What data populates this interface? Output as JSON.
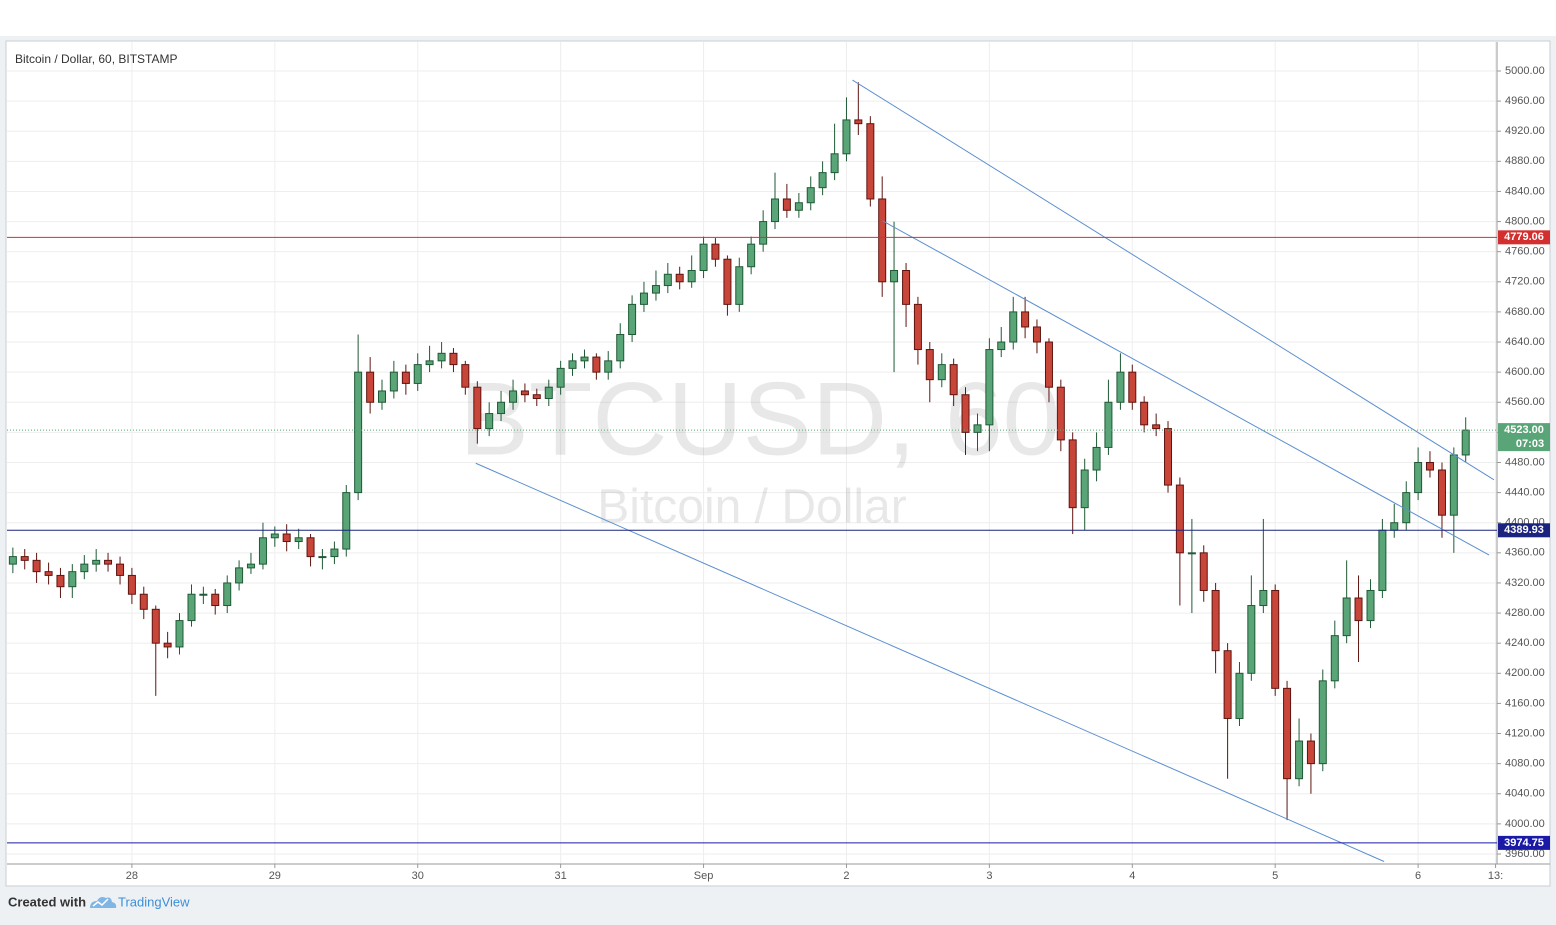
{
  "chart_data": {
    "type": "candlestick",
    "title": "Bitcoin / Dollar, 60, BITSTAMP",
    "watermark": {
      "symbol": "BTCUSD, 60",
      "name": "Bitcoin / Dollar"
    },
    "x": [
      -0.833,
      -0.75,
      -0.667,
      -0.583,
      -0.5,
      -0.417,
      -0.333,
      -0.25,
      -0.167,
      -0.083,
      0,
      0.083,
      0.167,
      0.25,
      0.333,
      0.417,
      0.5,
      0.583,
      0.667,
      0.75,
      0.833,
      0.917,
      1,
      1.083,
      1.167,
      1.25,
      1.333,
      1.417,
      1.5,
      1.583,
      1.667,
      1.75,
      1.833,
      1.917,
      2,
      2.083,
      2.167,
      2.25,
      2.333,
      2.417,
      2.5,
      2.583,
      2.667,
      2.75,
      2.833,
      2.917,
      3,
      3.083,
      3.167,
      3.25,
      3.333,
      3.417,
      3.5,
      3.583,
      3.667,
      3.75,
      3.833,
      3.917,
      4,
      4.083,
      4.167,
      4.25,
      4.333,
      4.417,
      4.5,
      4.583,
      4.667,
      4.75,
      4.833,
      4.917,
      5,
      5.083,
      5.167,
      5.25,
      5.333,
      5.417,
      5.5,
      5.583,
      5.667,
      5.75,
      5.833,
      5.917,
      6,
      6.083,
      6.167,
      6.25,
      6.333,
      6.417,
      6.5,
      6.583,
      6.667,
      6.75,
      6.833,
      6.917,
      7,
      7.083,
      7.167,
      7.25,
      7.333,
      7.417,
      7.5,
      7.583,
      7.667,
      7.75,
      7.833,
      7.917,
      8,
      8.083,
      8.167,
      8.25,
      8.333,
      8.417,
      8.5,
      8.583,
      8.667,
      8.75,
      8.833,
      8.917,
      9,
      9.083,
      9.167,
      9.25,
      9.333
    ],
    "open": [
      4345,
      4355,
      4350,
      4335,
      4330,
      4315,
      4335,
      4345,
      4350,
      4345,
      4330,
      4305,
      4285,
      4240,
      4235,
      4270,
      4305,
      4305,
      4290,
      4320,
      4340,
      4345,
      4380,
      4385,
      4375,
      4380,
      4355,
      4355,
      4365,
      4440,
      4600,
      4560,
      4575,
      4600,
      4585,
      4610,
      4615,
      4625,
      4610,
      4580,
      4525,
      4545,
      4560,
      4575,
      4570,
      4565,
      4580,
      4605,
      4615,
      4620,
      4600,
      4615,
      4650,
      4690,
      4705,
      4715,
      4730,
      4720,
      4735,
      4770,
      4750,
      4690,
      4740,
      4770,
      4800,
      4830,
      4815,
      4825,
      4845,
      4865,
      4890,
      4935,
      4930,
      4830,
      4720,
      4735,
      4690,
      4630,
      4590,
      4610,
      4570,
      4520,
      4530,
      4630,
      4640,
      4680,
      4660,
      4640,
      4580,
      4510,
      4420,
      4470,
      4500,
      4560,
      4600,
      4560,
      4530,
      4525,
      4450,
      4360,
      4360,
      4310,
      4230,
      4140,
      4200,
      4290,
      4310,
      4180,
      4060,
      4110,
      4080,
      4190,
      4250,
      4300,
      4270,
      4310,
      4390,
      4400,
      4440,
      4480,
      4470,
      4410,
      4490
    ],
    "high": [
      4367,
      4365,
      4360,
      4347,
      4340,
      4345,
      4357,
      4365,
      4360,
      4355,
      4340,
      4315,
      4290,
      4255,
      4280,
      4318,
      4315,
      4312,
      4330,
      4350,
      4360,
      4400,
      4395,
      4398,
      4392,
      4385,
      4365,
      4375,
      4450,
      4650,
      4620,
      4590,
      4615,
      4610,
      4625,
      4635,
      4640,
      4632,
      4615,
      4588,
      4560,
      4575,
      4590,
      4585,
      4578,
      4590,
      4615,
      4625,
      4630,
      4625,
      4628,
      4665,
      4702,
      4720,
      4735,
      4745,
      4740,
      4755,
      4780,
      4778,
      4755,
      4752,
      4780,
      4815,
      4865,
      4850,
      4838,
      4860,
      4880,
      4930,
      4965,
      4985,
      4940,
      4860,
      4800,
      4745,
      4700,
      4640,
      4625,
      4618,
      4580,
      4545,
      4645,
      4660,
      4700,
      4700,
      4670,
      4645,
      4590,
      4520,
      4485,
      4520,
      4590,
      4625,
      4610,
      4568,
      4545,
      4535,
      4460,
      4405,
      4370,
      4320,
      4240,
      4215,
      4330,
      4405,
      4318,
      4190,
      4140,
      4120,
      4205,
      4270,
      4350,
      4330,
      4325,
      4405,
      4425,
      4455,
      4500,
      4495,
      4480,
      4500,
      4540
    ],
    "low": [
      4333,
      4338,
      4320,
      4318,
      4300,
      4300,
      4325,
      4335,
      4335,
      4318,
      4292,
      4272,
      4170,
      4220,
      4225,
      4262,
      4292,
      4278,
      4280,
      4310,
      4332,
      4338,
      4368,
      4362,
      4365,
      4342,
      4338,
      4345,
      4355,
      4430,
      4545,
      4550,
      4565,
      4570,
      4575,
      4600,
      4605,
      4600,
      4570,
      4505,
      4515,
      4535,
      4550,
      4560,
      4555,
      4555,
      4570,
      4595,
      4605,
      4590,
      4590,
      4605,
      4640,
      4680,
      4695,
      4705,
      4710,
      4712,
      4725,
      4740,
      4675,
      4680,
      4730,
      4760,
      4790,
      4805,
      4805,
      4815,
      4835,
      4855,
      4880,
      4915,
      4820,
      4700,
      4600,
      4660,
      4610,
      4560,
      4580,
      4555,
      4490,
      4495,
      4495,
      4620,
      4630,
      4645,
      4625,
      4560,
      4495,
      4385,
      4390,
      4455,
      4490,
      4550,
      4550,
      4520,
      4515,
      4440,
      4290,
      4280,
      4295,
      4200,
      4060,
      4130,
      4190,
      4280,
      4170,
      4005,
      4050,
      4040,
      4070,
      4180,
      4240,
      4215,
      4260,
      4300,
      4380,
      4390,
      4430,
      4460,
      4380,
      4360,
      4480
    ],
    "close": [
      4355,
      4350,
      4335,
      4330,
      4315,
      4335,
      4345,
      4350,
      4345,
      4330,
      4305,
      4285,
      4240,
      4235,
      4270,
      4305,
      4305,
      4290,
      4320,
      4340,
      4345,
      4380,
      4385,
      4375,
      4380,
      4355,
      4355,
      4365,
      4440,
      4600,
      4560,
      4575,
      4600,
      4585,
      4610,
      4615,
      4625,
      4610,
      4580,
      4525,
      4545,
      4560,
      4575,
      4570,
      4565,
      4580,
      4605,
      4615,
      4620,
      4600,
      4615,
      4650,
      4690,
      4705,
      4715,
      4730,
      4720,
      4735,
      4770,
      4750,
      4690,
      4740,
      4770,
      4800,
      4830,
      4815,
      4825,
      4845,
      4865,
      4890,
      4935,
      4930,
      4830,
      4720,
      4735,
      4690,
      4630,
      4590,
      4610,
      4570,
      4520,
      4530,
      4630,
      4640,
      4680,
      4660,
      4640,
      4580,
      4510,
      4420,
      4470,
      4500,
      4560,
      4600,
      4560,
      4530,
      4525,
      4450,
      4360,
      4360,
      4310,
      4230,
      4140,
      4200,
      4290,
      4310,
      4180,
      4060,
      4110,
      4080,
      4190,
      4250,
      4300,
      4270,
      4310,
      4390,
      4400,
      4440,
      4480,
      4470,
      4410,
      4490,
      4523
    ],
    "up_color": "#5aa577",
    "down_color": "#c8453a",
    "xlim": [
      -0.874,
      9.552
    ],
    "ylim": [
      3946.7,
      5038.5
    ],
    "xticks": [
      {
        "value": 0,
        "label": "28"
      },
      {
        "value": 1,
        "label": "29"
      },
      {
        "value": 2,
        "label": "30"
      },
      {
        "value": 3,
        "label": "31"
      },
      {
        "value": 4,
        "label": "Sep"
      },
      {
        "value": 5,
        "label": "2"
      },
      {
        "value": 6,
        "label": "3"
      },
      {
        "value": 7,
        "label": "4"
      },
      {
        "value": 8,
        "label": "5"
      },
      {
        "value": 9,
        "label": "6"
      },
      {
        "value": 9.542,
        "label": "13:"
      }
    ],
    "yticks": [
      {
        "value": 3960,
        "label": "3960.00"
      },
      {
        "value": 4000,
        "label": "4000.00"
      },
      {
        "value": 4040,
        "label": "4040.00"
      },
      {
        "value": 4080,
        "label": "4080.00"
      },
      {
        "value": 4120,
        "label": "4120.00"
      },
      {
        "value": 4160,
        "label": "4160.00"
      },
      {
        "value": 4200,
        "label": "4200.00"
      },
      {
        "value": 4240,
        "label": "4240.00"
      },
      {
        "value": 4280,
        "label": "4280.00"
      },
      {
        "value": 4320,
        "label": "4320.00"
      },
      {
        "value": 4360,
        "label": "4360.00"
      },
      {
        "value": 4400,
        "label": "4400.00"
      },
      {
        "value": 4440,
        "label": "4440.00"
      },
      {
        "value": 4480,
        "label": "4480.00"
      },
      {
        "value": 4520,
        "label": "4520.00"
      },
      {
        "value": 4560,
        "label": "4560.00"
      },
      {
        "value": 4600,
        "label": "4600.00"
      },
      {
        "value": 4640,
        "label": "4640.00"
      },
      {
        "value": 4680,
        "label": "4680.00"
      },
      {
        "value": 4720,
        "label": "4720.00"
      },
      {
        "value": 4760,
        "label": "4760.00"
      },
      {
        "value": 4800,
        "label": "4800.00"
      },
      {
        "value": 4840,
        "label": "4840.00"
      },
      {
        "value": 4880,
        "label": "4880.00"
      },
      {
        "value": 4920,
        "label": "4920.00"
      },
      {
        "value": 4960,
        "label": "4960.00"
      },
      {
        "value": 5000,
        "label": "5000.00"
      }
    ],
    "grid": true,
    "levels": [
      {
        "value": 4779.06,
        "color": "#d32f2f"
      },
      {
        "value": 4389.93,
        "color": "#1a237e"
      },
      {
        "value": 3974.75,
        "color": "#1a1aa6"
      }
    ],
    "current": {
      "value": 4523,
      "label": "4523.00",
      "countdown": "07:03",
      "color": "#5aa577"
    },
    "trendlines": [
      {
        "x": [
          5.042,
          9.531
        ],
        "y": [
          4988,
          4457
        ]
      },
      {
        "x": [
          5.252,
          9.497
        ],
        "y": [
          4801,
          4357
        ]
      },
      {
        "x": [
          2.406,
          8.762
        ],
        "y": [
          4479,
          3950
        ]
      }
    ],
    "trend_color": "#5b8fd0"
  },
  "footer": {
    "text": "Created with",
    "brand": "TradingView"
  }
}
